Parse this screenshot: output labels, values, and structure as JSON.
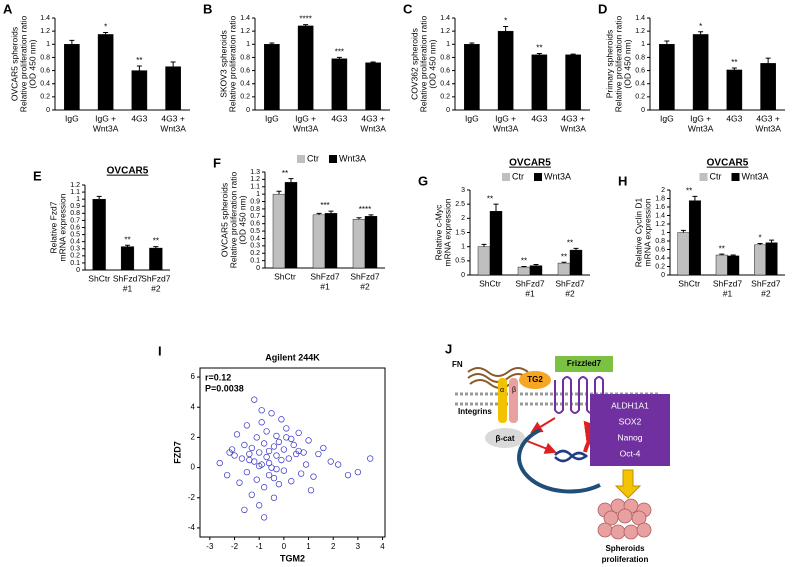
{
  "chart_data": [
    {
      "type": "bar",
      "panel": "A",
      "ylabel": [
        "OVCAR5 spheroids",
        "Relative proliferation ratio",
        "(OD 450 nm)"
      ],
      "categories": [
        [
          "IgG"
        ],
        [
          "IgG +",
          "Wnt3A"
        ],
        [
          "4G3"
        ],
        [
          "4G3 +",
          "Wnt3A"
        ]
      ],
      "values": [
        1.0,
        1.15,
        0.6,
        0.66
      ],
      "errors": [
        0.06,
        0.03,
        0.07,
        0.07
      ],
      "color": "#000000",
      "annotations": [
        {
          "index": 1,
          "label": "*"
        },
        {
          "index": 2,
          "label": "**"
        }
      ],
      "ylim": [
        0,
        1.4
      ],
      "yticks": [
        0,
        0.2,
        0.4,
        0.6,
        0.8,
        1,
        1.2,
        1.4
      ]
    },
    {
      "type": "bar",
      "panel": "B",
      "ylabel": [
        "SKOV3 spheroids",
        "Relative proliferation ratio"
      ],
      "categories": [
        [
          "IgG"
        ],
        [
          "IgG +",
          "Wnt3A"
        ],
        [
          "4G3"
        ],
        [
          "4G3 +",
          "Wnt3A"
        ]
      ],
      "values": [
        1.0,
        1.28,
        0.78,
        0.72
      ],
      "errors": [
        0.02,
        0.02,
        0.02,
        0.01
      ],
      "color": "#000000",
      "annotations": [
        {
          "index": 1,
          "label": "****"
        },
        {
          "index": 2,
          "label": "***"
        }
      ],
      "ylim": [
        0,
        1.4
      ],
      "yticks": [
        0,
        0.2,
        0.4,
        0.6,
        0.8,
        1,
        1.2,
        1.4
      ]
    },
    {
      "type": "bar",
      "panel": "C",
      "ylabel": [
        "COV362 spheroids",
        "Relative proliferation ratio",
        "(OD 450 nm)"
      ],
      "categories": [
        [
          "IgG"
        ],
        [
          "IgG +",
          "Wnt3A"
        ],
        [
          "4G3"
        ],
        [
          "4G3 +",
          "Wnt3A"
        ]
      ],
      "values": [
        1.0,
        1.2,
        0.84,
        0.84
      ],
      "errors": [
        0.02,
        0.07,
        0.02,
        0.01
      ],
      "color": "#000000",
      "annotations": [
        {
          "index": 1,
          "label": "*"
        },
        {
          "index": 2,
          "label": "**"
        }
      ],
      "ylim": [
        0,
        1.4
      ],
      "yticks": [
        0,
        0.2,
        0.4,
        0.6,
        0.8,
        1,
        1.2,
        1.4
      ]
    },
    {
      "type": "bar",
      "panel": "D",
      "ylabel": [
        "Primary spheroids",
        "Relative proliferation ratio",
        "(OD 450 nm)"
      ],
      "categories": [
        [
          "IgG"
        ],
        [
          "IgG +",
          "Wnt3A"
        ],
        [
          "4G3"
        ],
        [
          "4G3 +",
          "Wnt3A"
        ]
      ],
      "values": [
        1.0,
        1.15,
        0.61,
        0.71
      ],
      "errors": [
        0.05,
        0.04,
        0.03,
        0.08
      ],
      "color": "#000000",
      "annotations": [
        {
          "index": 1,
          "label": "*"
        },
        {
          "index": 2,
          "label": "**"
        }
      ],
      "ylim": [
        0,
        1.4
      ],
      "yticks": [
        0,
        0.2,
        0.4,
        0.6,
        0.8,
        1,
        1.2,
        1.4
      ]
    },
    {
      "type": "bar",
      "panel": "E",
      "title": "OVCAR5",
      "ylabel": [
        "Relative Fzd7",
        "mRNA expression"
      ],
      "categories": [
        [
          "ShCtr"
        ],
        [
          "ShFzd7",
          "#1"
        ],
        [
          "ShFzd7",
          "#2"
        ]
      ],
      "values": [
        1.0,
        0.33,
        0.31
      ],
      "errors": [
        0.04,
        0.02,
        0.02
      ],
      "color": "#000000",
      "annotations": [
        {
          "index": 1,
          "label": "**"
        },
        {
          "index": 2,
          "label": "**"
        }
      ],
      "ylim": [
        0,
        1.2
      ],
      "yticks": [
        0,
        0.1,
        0.2,
        0.3,
        0.4,
        0.5,
        0.6,
        0.7,
        0.8,
        0.9,
        1.0,
        1.1,
        1.2
      ]
    },
    {
      "type": "bar",
      "panel": "F",
      "ylabel": [
        "OVCAR5 spheroids",
        "Relative proliferation ratio",
        "(OD 450 nm)"
      ],
      "categories": [
        [
          "ShCtr"
        ],
        [
          "ShFzd7",
          "#1"
        ],
        [
          "ShFzd7",
          "#2"
        ]
      ],
      "series": [
        {
          "name": "Ctr",
          "color": "#bfbfbf",
          "values": [
            1.0,
            0.72,
            0.66
          ],
          "errors": [
            0.04,
            0.02,
            0.02
          ]
        },
        {
          "name": "Wnt3A",
          "color": "#000000",
          "values": [
            1.16,
            0.74,
            0.7
          ],
          "errors": [
            0.05,
            0.03,
            0.02
          ]
        }
      ],
      "annotations": [
        {
          "index": 0,
          "label": "**"
        },
        {
          "index": 1,
          "label": "***"
        },
        {
          "index": 2,
          "label": "****"
        }
      ],
      "ylim": [
        0,
        1.3
      ],
      "yticks": [
        0,
        0.1,
        0.2,
        0.3,
        0.4,
        0.5,
        0.6,
        0.7,
        0.8,
        0.9,
        1,
        1.1,
        1.2,
        1.3
      ]
    },
    {
      "type": "bar",
      "panel": "G",
      "title": "OVCAR5",
      "ylabel": [
        "Relative c-Myc",
        "mRNA expression"
      ],
      "categories": [
        [
          "ShCtr"
        ],
        [
          "ShFzd7",
          "#1"
        ],
        [
          "ShFzd7",
          "#2"
        ]
      ],
      "series": [
        {
          "name": "Ctr",
          "color": "#bfbfbf",
          "values": [
            1.0,
            0.28,
            0.42
          ],
          "errors": [
            0.08,
            0.02,
            0.03
          ]
        },
        {
          "name": "Wnt3A",
          "color": "#000000",
          "values": [
            2.25,
            0.33,
            0.88
          ],
          "errors": [
            0.25,
            0.04,
            0.06
          ]
        }
      ],
      "annotations": [
        {
          "index": 0,
          "label": "**"
        },
        {
          "index": 1,
          "series": 0,
          "label": "**"
        },
        {
          "index": 2,
          "series": 0,
          "label": "**"
        },
        {
          "index": 2,
          "label": "**"
        }
      ],
      "ylim": [
        0,
        3
      ],
      "yticks": [
        0,
        0.5,
        1,
        1.5,
        2,
        2.5,
        3
      ]
    },
    {
      "type": "bar",
      "panel": "H",
      "title": "OVCAR5",
      "ylabel": [
        "Relative Cyclin D1",
        "mRNA expression"
      ],
      "categories": [
        [
          "ShCtr"
        ],
        [
          "ShFzd7",
          "#1"
        ],
        [
          "ShFzd7",
          "#2"
        ]
      ],
      "series": [
        {
          "name": "Ctr",
          "color": "#bfbfbf",
          "values": [
            1.0,
            0.47,
            0.71
          ],
          "errors": [
            0.05,
            0.02,
            0.03
          ]
        },
        {
          "name": "Wnt3A",
          "color": "#000000",
          "values": [
            1.75,
            0.45,
            0.76
          ],
          "errors": [
            0.1,
            0.02,
            0.06
          ]
        }
      ],
      "annotations": [
        {
          "index": 0,
          "label": "**"
        },
        {
          "index": 1,
          "series": 0,
          "label": "**"
        },
        {
          "index": 2,
          "series": 0,
          "label": "*"
        }
      ],
      "ylim": [
        0,
        2
      ],
      "yticks": [
        0,
        0.2,
        0.4,
        0.6,
        0.8,
        1,
        1.2,
        1.4,
        1.6,
        1.8,
        2
      ]
    },
    {
      "type": "scatter",
      "panel": "I",
      "title": "Agilent 244K",
      "xlabel": "TGM2",
      "ylabel": "FZD7",
      "annotations": [
        "r=0.12",
        "P=0.0038"
      ],
      "color": "#3333cc",
      "x": [
        -2.6,
        -2.3,
        -2.1,
        -2.0,
        -1.9,
        -1.8,
        -1.7,
        -1.6,
        -1.5,
        -1.5,
        -1.4,
        -1.3,
        -1.3,
        -1.2,
        -1.1,
        -1.1,
        -1.0,
        -1.0,
        -0.9,
        -0.9,
        -0.8,
        -0.8,
        -0.7,
        -0.7,
        -0.6,
        -0.6,
        -0.5,
        -0.5,
        -0.4,
        -0.4,
        -0.3,
        -0.3,
        -0.2,
        -0.2,
        -0.1,
        -0.1,
        0.0,
        0.0,
        0.1,
        0.2,
        0.3,
        0.4,
        0.5,
        0.6,
        0.7,
        0.8,
        0.9,
        1.0,
        1.2,
        1.4,
        1.6,
        1.9,
        2.2,
        2.6,
        3.0,
        3.5,
        -1.2,
        -0.8,
        -0.4,
        0.1,
        -1.6,
        -0.9,
        0.3,
        -0.6,
        -2.2,
        1.1,
        -1.0,
        -0.3,
        0.6,
        -1.4
      ],
      "values": [
        0.3,
        -0.5,
        1.2,
        0.8,
        2.2,
        -1.0,
        0.6,
        1.5,
        -0.3,
        2.8,
        0.9,
        -1.8,
        1.3,
        0.4,
        2.0,
        -0.8,
        1.0,
        -2.5,
        3.0,
        0.2,
        1.6,
        -1.3,
        0.7,
        2.4,
        -0.5,
        1.1,
        3.6,
        0.0,
        1.4,
        -2.0,
        0.8,
        2.1,
        -1.1,
        1.7,
        0.5,
        3.2,
        -0.2,
        1.2,
        2.0,
        0.6,
        -0.9,
        1.5,
        0.9,
        2.3,
        -0.4,
        1.0,
        0.2,
        1.8,
        -0.6,
        0.9,
        1.3,
        0.4,
        0.2,
        -0.5,
        -0.3,
        0.6,
        4.5,
        -3.3,
        -0.7,
        2.6,
        -2.8,
        3.8,
        1.9,
        0.3,
        1.0,
        -1.5,
        0.1,
        -0.1,
        1.1,
        0.5
      ],
      "xlim": [
        -3.4,
        4.1
      ],
      "xticks": [
        -3,
        -2,
        -1,
        0,
        1,
        2,
        3,
        4
      ],
      "ylim": [
        -4.6,
        6.6
      ],
      "yticks": [
        -4,
        -2,
        0,
        2,
        4,
        6
      ]
    }
  ],
  "diagram": {
    "panel": "J",
    "fn": "FN",
    "tg2": "TG2",
    "frizzled": "Frizzled7",
    "integrins": "Integrins",
    "alpha": "α",
    "beta": "β",
    "bcat": "β-cat",
    "genes": [
      "ALDH1A1",
      "SOX2",
      "Nanog",
      "Oct-4"
    ],
    "outcome": [
      "Spheroids",
      "proliferation"
    ]
  }
}
